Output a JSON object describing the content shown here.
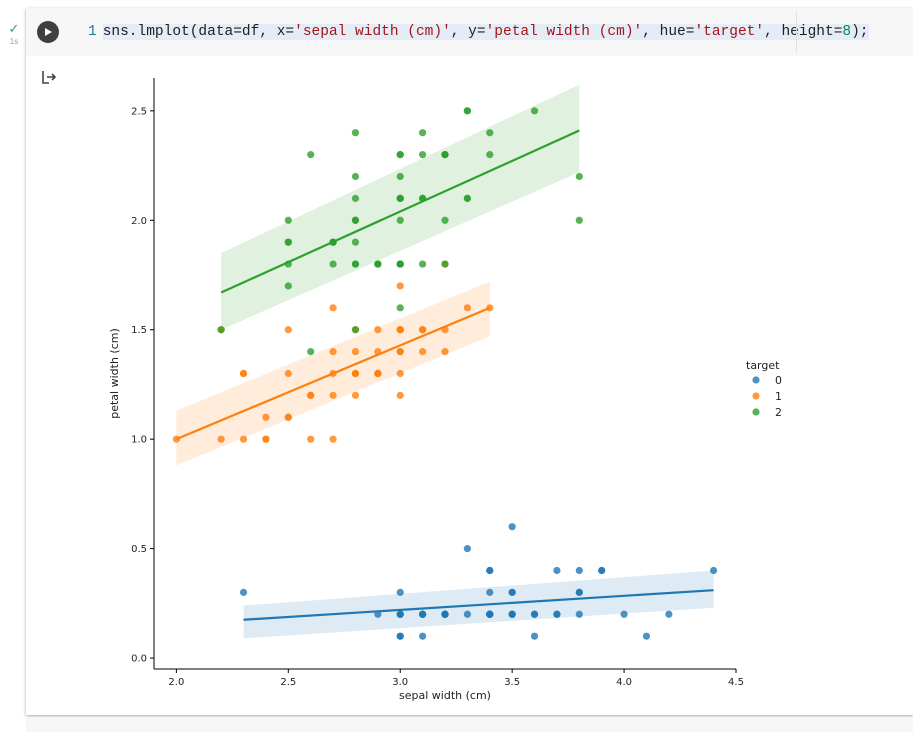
{
  "cell": {
    "status_icon": "check-icon",
    "run_time": "1s",
    "code": {
      "line_number": "1",
      "prefix": "sns.lmplot(data=df, x=",
      "x_arg": "'sepal width (cm)'",
      "mid1": ", y=",
      "y_arg": "'petal width (cm)'",
      "mid2": ", hue=",
      "hue_arg": "'target'",
      "mid3": ", height=",
      "height_arg": "8",
      "suffix": ");"
    },
    "output_icon": "output-arrow-icon"
  },
  "colors": {
    "series_0": "#1f77b4",
    "series_1": "#ff7f0e",
    "series_2": "#2ca02c"
  },
  "chart_data": {
    "type": "scatter",
    "xlabel": "sepal width (cm)",
    "ylabel": "petal width (cm)",
    "xlim": [
      1.9,
      4.5
    ],
    "ylim": [
      -0.05,
      2.65
    ],
    "xticks": [
      "2.0",
      "2.5",
      "3.0",
      "3.5",
      "4.0",
      "4.5"
    ],
    "yticks": [
      "0.0",
      "0.5",
      "1.0",
      "1.5",
      "2.0",
      "2.5"
    ],
    "grid": false,
    "legend": {
      "title": "target",
      "placement": "right",
      "labels": [
        "0",
        "1",
        "2"
      ]
    },
    "series": [
      {
        "name": "0",
        "color": "#1f77b4",
        "points": [
          [
            3.5,
            0.2
          ],
          [
            3.0,
            0.2
          ],
          [
            3.2,
            0.2
          ],
          [
            3.1,
            0.2
          ],
          [
            3.6,
            0.2
          ],
          [
            3.9,
            0.4
          ],
          [
            3.4,
            0.3
          ],
          [
            3.4,
            0.2
          ],
          [
            2.9,
            0.2
          ],
          [
            3.1,
            0.1
          ],
          [
            3.7,
            0.2
          ],
          [
            3.4,
            0.2
          ],
          [
            3.0,
            0.1
          ],
          [
            3.0,
            0.1
          ],
          [
            4.0,
            0.2
          ],
          [
            4.4,
            0.4
          ],
          [
            3.9,
            0.4
          ],
          [
            3.5,
            0.3
          ],
          [
            3.8,
            0.3
          ],
          [
            3.8,
            0.3
          ],
          [
            3.4,
            0.2
          ],
          [
            3.7,
            0.4
          ],
          [
            3.6,
            0.2
          ],
          [
            3.3,
            0.5
          ],
          [
            3.4,
            0.2
          ],
          [
            3.0,
            0.2
          ],
          [
            3.4,
            0.4
          ],
          [
            3.5,
            0.2
          ],
          [
            3.4,
            0.2
          ],
          [
            3.2,
            0.2
          ],
          [
            3.1,
            0.2
          ],
          [
            3.4,
            0.4
          ],
          [
            4.1,
            0.1
          ],
          [
            4.2,
            0.2
          ],
          [
            3.1,
            0.2
          ],
          [
            3.2,
            0.2
          ],
          [
            3.5,
            0.2
          ],
          [
            3.6,
            0.1
          ],
          [
            3.0,
            0.2
          ],
          [
            3.4,
            0.2
          ],
          [
            3.5,
            0.3
          ],
          [
            2.3,
            0.3
          ],
          [
            3.2,
            0.2
          ],
          [
            3.5,
            0.6
          ],
          [
            3.8,
            0.4
          ],
          [
            3.0,
            0.3
          ],
          [
            3.8,
            0.2
          ],
          [
            3.2,
            0.2
          ],
          [
            3.7,
            0.2
          ],
          [
            3.3,
            0.2
          ]
        ],
        "fit": {
          "x": [
            2.3,
            4.4
          ],
          "y": [
            0.175,
            0.31
          ],
          "ci_low_start": 0.09,
          "ci_high_start": 0.24,
          "ci_low_end": 0.23,
          "ci_high_end": 0.4
        }
      },
      {
        "name": "1",
        "color": "#ff7f0e",
        "points": [
          [
            3.2,
            1.4
          ],
          [
            3.2,
            1.5
          ],
          [
            3.1,
            1.5
          ],
          [
            2.3,
            1.3
          ],
          [
            2.8,
            1.5
          ],
          [
            2.8,
            1.3
          ],
          [
            3.3,
            1.6
          ],
          [
            2.4,
            1.0
          ],
          [
            2.9,
            1.3
          ],
          [
            2.7,
            1.4
          ],
          [
            2.0,
            1.0
          ],
          [
            3.0,
            1.5
          ],
          [
            2.2,
            1.0
          ],
          [
            2.9,
            1.4
          ],
          [
            2.9,
            1.3
          ],
          [
            3.1,
            1.4
          ],
          [
            3.0,
            1.5
          ],
          [
            2.7,
            1.0
          ],
          [
            2.2,
            1.5
          ],
          [
            2.5,
            1.1
          ],
          [
            3.2,
            1.8
          ],
          [
            2.8,
            1.3
          ],
          [
            2.5,
            1.5
          ],
          [
            2.8,
            1.2
          ],
          [
            2.9,
            1.3
          ],
          [
            3.0,
            1.4
          ],
          [
            2.8,
            1.4
          ],
          [
            3.0,
            1.7
          ],
          [
            2.9,
            1.5
          ],
          [
            2.6,
            1.0
          ],
          [
            2.4,
            1.1
          ],
          [
            2.4,
            1.0
          ],
          [
            2.7,
            1.2
          ],
          [
            2.7,
            1.6
          ],
          [
            3.0,
            1.5
          ],
          [
            3.4,
            1.6
          ],
          [
            3.1,
            1.5
          ],
          [
            2.3,
            1.3
          ],
          [
            3.0,
            1.3
          ],
          [
            2.5,
            1.3
          ],
          [
            2.6,
            1.2
          ],
          [
            3.0,
            1.4
          ],
          [
            2.6,
            1.2
          ],
          [
            2.3,
            1.0
          ],
          [
            2.7,
            1.3
          ],
          [
            3.0,
            1.2
          ],
          [
            2.9,
            1.3
          ],
          [
            2.9,
            1.3
          ],
          [
            2.5,
            1.1
          ],
          [
            2.8,
            1.3
          ]
        ],
        "fit": {
          "x": [
            2.0,
            3.4
          ],
          "y": [
            1.0,
            1.6
          ],
          "ci_low_start": 0.88,
          "ci_high_start": 1.13,
          "ci_low_end": 1.47,
          "ci_high_end": 1.72
        }
      },
      {
        "name": "2",
        "color": "#2ca02c",
        "points": [
          [
            3.3,
            2.5
          ],
          [
            2.7,
            1.9
          ],
          [
            3.0,
            2.1
          ],
          [
            2.9,
            1.8
          ],
          [
            3.0,
            2.2
          ],
          [
            3.0,
            2.1
          ],
          [
            2.5,
            1.7
          ],
          [
            2.9,
            1.8
          ],
          [
            2.5,
            1.8
          ],
          [
            3.6,
            2.5
          ],
          [
            3.2,
            2.0
          ],
          [
            2.7,
            1.9
          ],
          [
            3.0,
            2.1
          ],
          [
            2.5,
            2.0
          ],
          [
            2.8,
            2.4
          ],
          [
            3.2,
            2.3
          ],
          [
            3.0,
            1.8
          ],
          [
            3.8,
            2.2
          ],
          [
            2.6,
            2.3
          ],
          [
            2.2,
            1.5
          ],
          [
            3.2,
            2.3
          ],
          [
            2.8,
            2.0
          ],
          [
            2.8,
            2.0
          ],
          [
            2.7,
            1.8
          ],
          [
            3.3,
            2.1
          ],
          [
            3.2,
            1.8
          ],
          [
            2.8,
            1.8
          ],
          [
            3.0,
            1.8
          ],
          [
            2.8,
            2.1
          ],
          [
            3.0,
            1.6
          ],
          [
            2.8,
            1.9
          ],
          [
            3.8,
            2.0
          ],
          [
            2.8,
            2.2
          ],
          [
            2.8,
            1.5
          ],
          [
            2.6,
            1.4
          ],
          [
            3.0,
            2.3
          ],
          [
            3.4,
            2.4
          ],
          [
            3.1,
            1.8
          ],
          [
            3.0,
            1.8
          ],
          [
            3.1,
            2.1
          ],
          [
            3.1,
            2.4
          ],
          [
            3.1,
            2.3
          ],
          [
            2.7,
            1.9
          ],
          [
            3.2,
            2.3
          ],
          [
            3.3,
            2.5
          ],
          [
            3.0,
            2.3
          ],
          [
            2.5,
            1.9
          ],
          [
            3.0,
            2.0
          ],
          [
            3.4,
            2.3
          ],
          [
            3.0,
            1.8
          ],
          [
            2.9,
            1.8
          ],
          [
            2.5,
            1.9
          ],
          [
            3.1,
            2.1
          ],
          [
            2.8,
            1.8
          ],
          [
            3.3,
            2.1
          ]
        ],
        "fit": {
          "x": [
            2.2,
            3.8
          ],
          "y": [
            1.67,
            2.41
          ],
          "ci_low_start": 1.5,
          "ci_high_start": 1.85,
          "ci_low_end": 2.22,
          "ci_high_end": 2.62
        }
      }
    ]
  }
}
